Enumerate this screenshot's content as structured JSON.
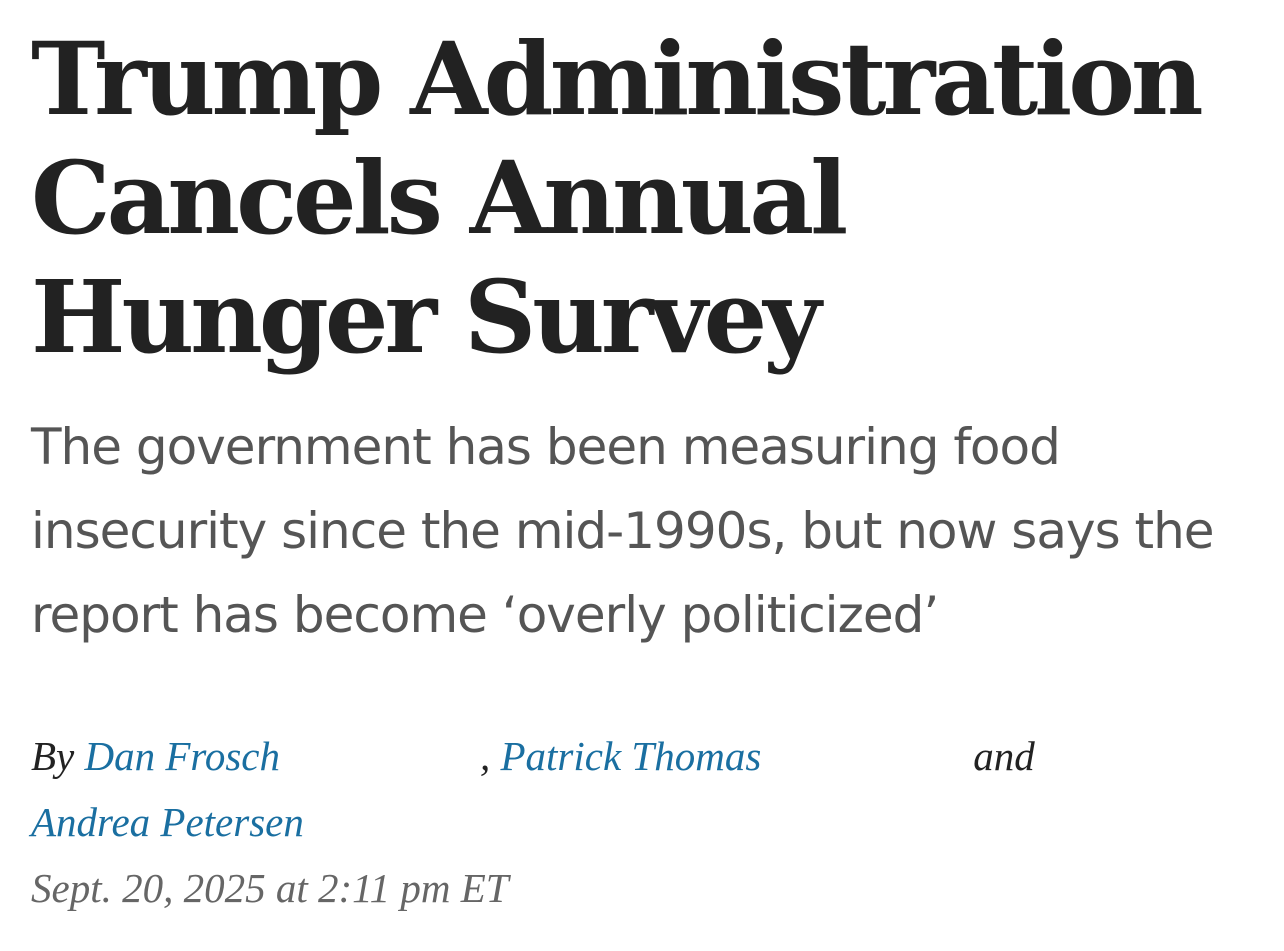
{
  "article": {
    "headline": "Trump Administration Cancels Annual Hunger Survey",
    "dek": "The government has been measuring food insecurity since the mid-1990s, but now says the report has become ‘overly politicized’",
    "byline": {
      "prefix": "By",
      "authors": [
        "Dan Frosch",
        "Patrick Thomas",
        "Andrea Petersen"
      ],
      "separator": ",",
      "conjunction": "and"
    },
    "timestamp": "Sept. 20, 2025 at 2:11 pm ET"
  },
  "colors": {
    "headline": "#222222",
    "dek": "#555555",
    "author_link": "#1a6fa1",
    "timestamp": "#666666"
  }
}
